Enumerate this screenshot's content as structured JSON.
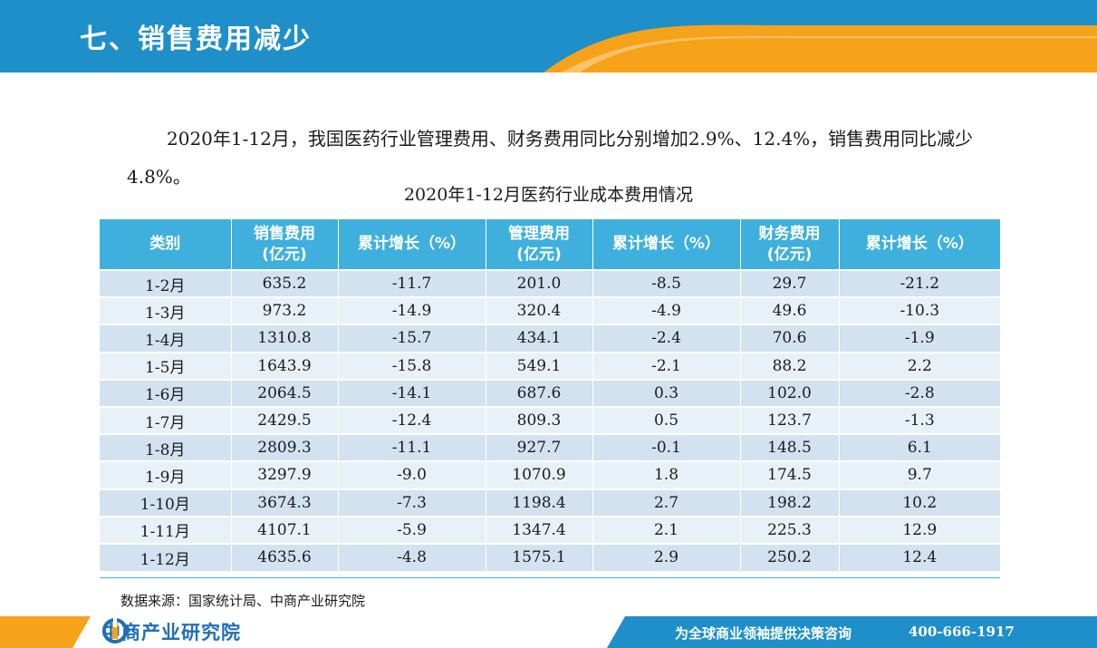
{
  "header": {
    "title": "七、销售费用减少"
  },
  "intro": {
    "text": "2020年1-12月，我国医药行业管理费用、财务费用同比分别增加2.9%、12.4%，销售费用同比减少4.8%。"
  },
  "table": {
    "caption": "2020年1-12月医药行业成本费用情况",
    "columns": [
      [
        "类别"
      ],
      [
        "销售费用",
        "(亿元)"
      ],
      [
        "累计增长（%）"
      ],
      [
        "管理费用",
        "(亿元)"
      ],
      [
        "累计增长（%）"
      ],
      [
        "财务费用",
        "(亿元)"
      ],
      [
        "累计增长（%）"
      ]
    ],
    "rows": [
      [
        "1-2月",
        "635.2",
        "-11.7",
        "201.0",
        "-8.5",
        "29.7",
        "-21.2"
      ],
      [
        "1-3月",
        "973.2",
        "-14.9",
        "320.4",
        "-4.9",
        "49.6",
        "-10.3"
      ],
      [
        "1-4月",
        "1310.8",
        "-15.7",
        "434.1",
        "-2.4",
        "70.6",
        "-1.9"
      ],
      [
        "1-5月",
        "1643.9",
        "-15.8",
        "549.1",
        "-2.1",
        "88.2",
        "2.2"
      ],
      [
        "1-6月",
        "2064.5",
        "-14.1",
        "687.6",
        "0.3",
        "102.0",
        "-2.8"
      ],
      [
        "1-7月",
        "2429.5",
        "-12.4",
        "809.3",
        "0.5",
        "123.7",
        "-1.3"
      ],
      [
        "1-8月",
        "2809.3",
        "-11.1",
        "927.7",
        "-0.1",
        "148.5",
        "6.1"
      ],
      [
        "1-9月",
        "3297.9",
        "-9.0",
        "1070.9",
        "1.8",
        "174.5",
        "9.7"
      ],
      [
        "1-10月",
        "3674.3",
        "-7.3",
        "1198.4",
        "2.7",
        "198.2",
        "10.2"
      ],
      [
        "1-11月",
        "4107.1",
        "-5.9",
        "1347.4",
        "2.1",
        "225.3",
        "12.9"
      ],
      [
        "1-12月",
        "4635.6",
        "-4.8",
        "1575.1",
        "2.9",
        "250.2",
        "12.4"
      ]
    ]
  },
  "source": "数据来源：国家统计局、中商产业研究院",
  "footer": {
    "logo_text": "中商产业研究院",
    "slogan": "为全球商业领袖提供决策咨询",
    "phone": "400-666-1917"
  },
  "colors": {
    "header_blue": "#1f8fc9",
    "accent_orange": "#f7a21b",
    "table_header": "#3fb0dd"
  }
}
